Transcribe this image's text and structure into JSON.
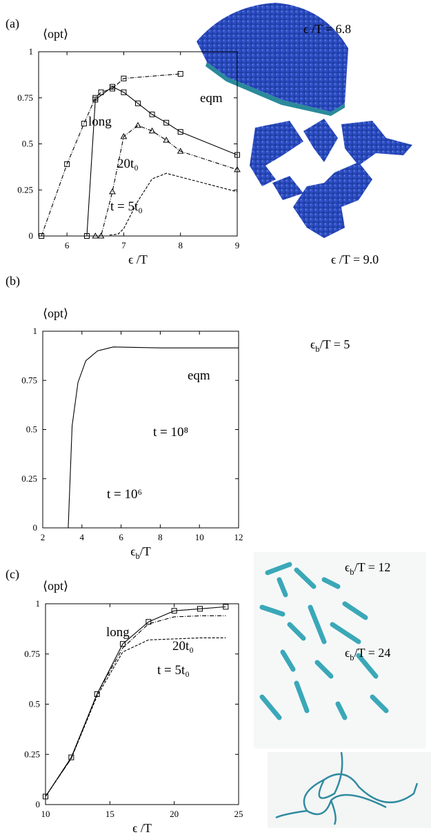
{
  "figure": {
    "panel_labels": [
      "(a)",
      "(b)",
      "(c)"
    ]
  },
  "chart_data": [
    {
      "type": "line",
      "ylabel": "⟨opt⟩",
      "xlabel": "ϵ /T",
      "xlim": [
        5.5,
        9
      ],
      "ylim": [
        0,
        1
      ],
      "xticks": [
        6,
        7,
        8,
        9
      ],
      "yticks": [
        0,
        0.25,
        0.5,
        0.75,
        1
      ],
      "series": [
        {
          "name": "eqm",
          "color": "#000000",
          "dash": "dashdot",
          "marker": "square",
          "x": [
            5.55,
            6,
            6.3,
            6.5,
            6.6,
            6.8,
            7,
            8
          ],
          "values": [
            0,
            0.39,
            0.61,
            0.75,
            0.78,
            0.8,
            0.855,
            0.88
          ]
        },
        {
          "name": "long",
          "color": "#000000",
          "dash": "solid",
          "marker": "square",
          "x": [
            6.35,
            6.5,
            6.8,
            7,
            7.25,
            7.5,
            7.75,
            8,
            9
          ],
          "values": [
            0,
            0.74,
            0.81,
            0.78,
            0.72,
            0.66,
            0.615,
            0.565,
            0.44
          ]
        },
        {
          "name": "20t₀",
          "color": "#000000",
          "dash": "dashdot",
          "marker": "triangle",
          "x": [
            6.5,
            6.6,
            6.8,
            7,
            7.25,
            7.5,
            7.75,
            8,
            9
          ],
          "values": [
            0,
            0,
            0.24,
            0.54,
            0.6,
            0.57,
            0.52,
            0.46,
            0.36
          ]
        },
        {
          "name": "t = 5t₀",
          "color": "#000000",
          "dash": "dashed",
          "marker": "none",
          "x": [
            6.75,
            6.9,
            7,
            7.25,
            7.5,
            7.75,
            8,
            9
          ],
          "values": [
            0.005,
            0.01,
            0.04,
            0.19,
            0.31,
            0.34,
            0.32,
            0.24
          ]
        }
      ],
      "image_labels": [
        "ϵ /T = 6.8",
        "ϵ /T = 9.0"
      ]
    },
    {
      "type": "line",
      "ylabel": "⟨opt⟩",
      "xlabel": [
        "ϵ",
        "b",
        "/T"
      ],
      "xlim": [
        2,
        12
      ],
      "ylim": [
        0,
        1
      ],
      "xticks": [
        2,
        4,
        6,
        8,
        10,
        12
      ],
      "yticks": [
        0,
        0.25,
        0.5,
        0.75,
        1
      ],
      "series": [
        {
          "name": "eqm",
          "color": "#000000",
          "dash": "solid",
          "marker": "none",
          "x": [
            2,
            3.3,
            3.5,
            3.8,
            4.2,
            4.8,
            5.6,
            8,
            12
          ],
          "values": [
            0,
            0,
            0.52,
            0.74,
            0.85,
            0.9,
            0.92,
            0.915,
            0.915
          ]
        }
      ],
      "annotations": [
        "t = 10⁸",
        "t = 10⁶"
      ],
      "image_labels": [
        [
          "ϵ",
          "b",
          "/T = 5"
        ]
      ]
    },
    {
      "type": "line",
      "ylabel": "⟨opt⟩",
      "xlabel": "ϵ /T",
      "xlim": [
        10,
        25
      ],
      "ylim": [
        0,
        1
      ],
      "xticks": [
        10,
        15,
        20,
        25
      ],
      "yticks": [
        0,
        0.25,
        0.5,
        0.75,
        1
      ],
      "series": [
        {
          "name": "long",
          "color": "#000000",
          "dash": "solid",
          "marker": "square",
          "x": [
            10,
            12,
            14,
            16,
            18,
            20,
            22,
            24
          ],
          "values": [
            0.04,
            0.235,
            0.55,
            0.8,
            0.91,
            0.965,
            0.975,
            0.985
          ]
        },
        {
          "name": "20t₀",
          "color": "#000000",
          "dash": "dashdot",
          "marker": "none",
          "x": [
            10,
            12,
            14,
            16,
            18,
            20,
            22,
            24
          ],
          "values": [
            0.04,
            0.23,
            0.55,
            0.78,
            0.9,
            0.935,
            0.94,
            0.94
          ]
        },
        {
          "name": "t = 5t₀",
          "color": "#000000",
          "dash": "dashed",
          "marker": "none",
          "x": [
            10,
            12,
            14,
            16,
            18,
            20,
            22,
            24
          ],
          "values": [
            0.04,
            0.23,
            0.54,
            0.76,
            0.82,
            0.825,
            0.83,
            0.83
          ]
        }
      ],
      "image_labels": [
        [
          "ϵ",
          "b",
          "/T = 12"
        ],
        [
          "ϵ",
          "b",
          "/T = 24"
        ]
      ]
    }
  ]
}
